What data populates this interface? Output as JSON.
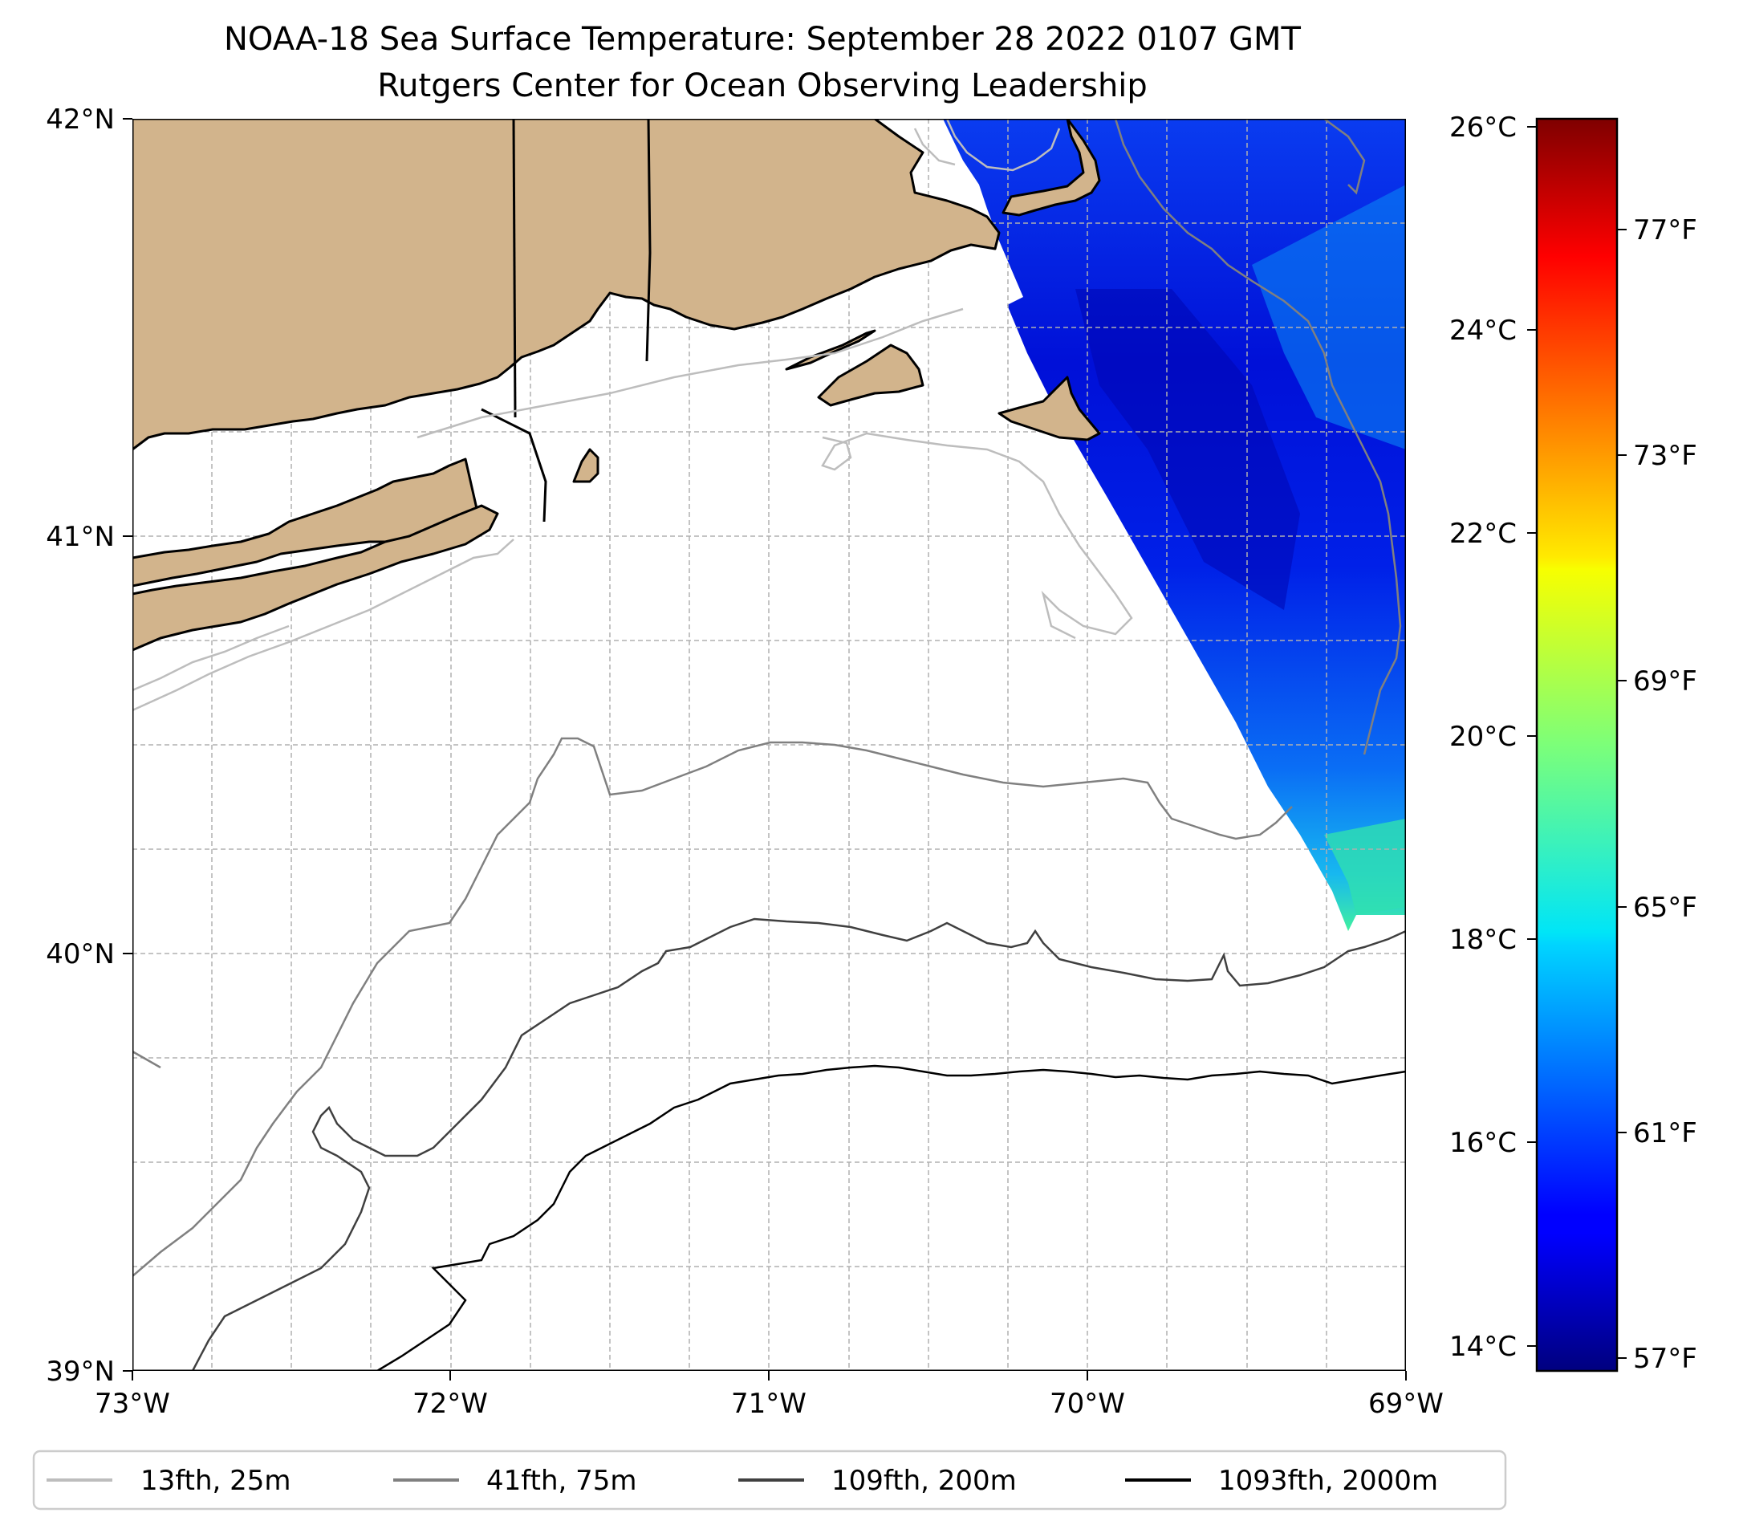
{
  "title": {
    "line1": "NOAA-18 Sea Surface Temperature: September 28 2022 0107 GMT",
    "line2": "Rutgers Center for Ocean Observing Leadership"
  },
  "map": {
    "lon_range": [
      -73,
      -69
    ],
    "lat_range": [
      39,
      42
    ],
    "lon_ticks": [
      {
        "value": -73,
        "label": "73°W"
      },
      {
        "value": -72,
        "label": "72°W"
      },
      {
        "value": -71,
        "label": "71°W"
      },
      {
        "value": -70,
        "label": "70°W"
      },
      {
        "value": -69,
        "label": "69°W"
      }
    ],
    "lat_ticks": [
      {
        "value": 42,
        "label": "42°N"
      },
      {
        "value": 41,
        "label": "41°N"
      },
      {
        "value": 40,
        "label": "40°N"
      },
      {
        "value": 39,
        "label": "39°N"
      }
    ],
    "gridlines": true,
    "land_color": "#d2b48c",
    "coast_color": "#000000"
  },
  "colorbar": {
    "colormap": "jet",
    "celsius_ticks": [
      {
        "value": 14,
        "label": "14°C"
      },
      {
        "value": 16,
        "label": "16°C"
      },
      {
        "value": 18,
        "label": "18°C"
      },
      {
        "value": 20,
        "label": "20°C"
      },
      {
        "value": 22,
        "label": "22°C"
      },
      {
        "value": 24,
        "label": "24°C"
      },
      {
        "value": 26,
        "label": "26°C"
      }
    ],
    "fahrenheit_ticks": [
      {
        "value": 57,
        "label": "57°F"
      },
      {
        "value": 61,
        "label": "61°F"
      },
      {
        "value": 65,
        "label": "65°F"
      },
      {
        "value": 69,
        "label": "69°F"
      },
      {
        "value": 73,
        "label": "73°F"
      },
      {
        "value": 77,
        "label": "77°F"
      }
    ]
  },
  "legend": {
    "items": [
      {
        "label": "13fth, 25m",
        "color": "#bdbdbd"
      },
      {
        "label": "41fth, 75m",
        "color": "#808080"
      },
      {
        "label": "109fth, 200m",
        "color": "#404040"
      },
      {
        "label": "1093fth, 2000m",
        "color": "#000000"
      }
    ]
  }
}
